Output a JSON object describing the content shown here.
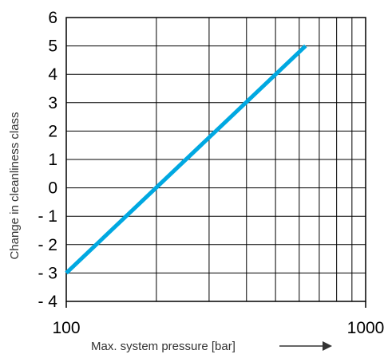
{
  "chart_data": {
    "type": "line",
    "title": "",
    "xlabel": "Max. system pressure [bar]",
    "ylabel": "Change in cleanliness class",
    "xscale": "log",
    "xlim": [
      100,
      1000
    ],
    "ylim": [
      -4,
      6
    ],
    "x_tick_labels": [
      "100",
      "1000"
    ],
    "y_tick_labels": [
      "6",
      "5",
      "4",
      "3",
      "2",
      "1",
      "0",
      "- 1",
      "- 2",
      "- 3",
      "- 4"
    ],
    "y_tick_values": [
      6,
      5,
      4,
      3,
      2,
      1,
      0,
      -1,
      -2,
      -3,
      -4
    ],
    "x_gridlines": [
      100,
      200,
      300,
      400,
      500,
      600,
      700,
      800,
      900,
      1000
    ],
    "grid": true,
    "series": [
      {
        "x": [
          100,
          630
        ],
        "y": [
          -3,
          5
        ],
        "color": "#00a8e1"
      }
    ],
    "xlabel_arrow": "right-arrow"
  }
}
